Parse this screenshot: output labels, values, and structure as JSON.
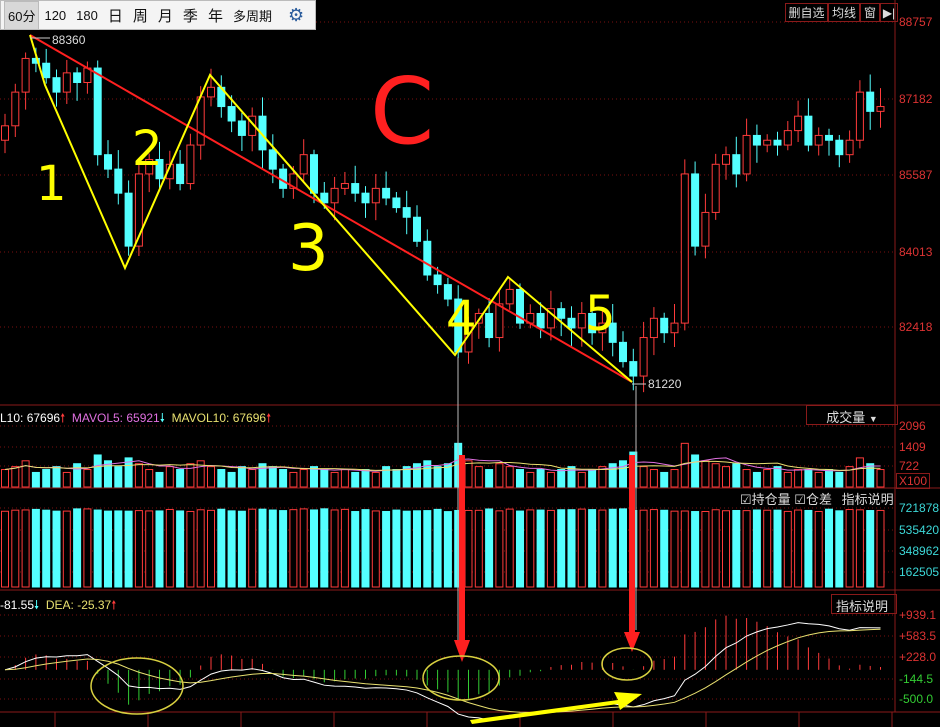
{
  "toolbar": {
    "periods": [
      "60分",
      "120",
      "180",
      "日",
      "周",
      "月",
      "季",
      "年",
      "多周期"
    ],
    "selected": "60分",
    "settings_icon": "gear-icon"
  },
  "top_right": {
    "delete_watch": "删自选",
    "ma": "均线",
    "window": "窗",
    "expand_icon": "arrow-right-bar-icon"
  },
  "price_panel": {
    "high_label": "88360",
    "low_label": "81220",
    "axis": [
      "88757",
      "87182",
      "85587",
      "84013",
      "82418"
    ]
  },
  "volume_panel": {
    "legend": [
      {
        "text": "L10: 67696",
        "arrow": "up",
        "color": "#ffffff"
      },
      {
        "text": "MAVOL5: 65921",
        "arrow": "down",
        "color": "#e070e0"
      },
      {
        "text": "MAVOL10: 67696",
        "arrow": "up",
        "color": "#e8e070"
      }
    ],
    "selector": "成交量",
    "axis": [
      "2096",
      "1409",
      "722",
      "X100"
    ]
  },
  "oi_panel": {
    "checkbox_oi": "持仓量",
    "checkbox_diff": "仓差",
    "explain": "指标说明",
    "axis": [
      "721878",
      "535420",
      "348962",
      "162505"
    ]
  },
  "macd_panel": {
    "dif": "-81.55",
    "dea": "DEA: -25.37",
    "explain": "指标说明",
    "axis": [
      "+939.1",
      "+583.5",
      "+228.0",
      "-144.5",
      "-500.0"
    ]
  },
  "annotations": {
    "wave_labels": [
      "1",
      "2",
      "3",
      "4",
      "5"
    ],
    "big_label": "C"
  },
  "colors": {
    "up": "#ff3b3b",
    "down": "#54ffff",
    "grid": "#7a1010",
    "annotation_yellow": "#ffff00",
    "annotation_red": "#ff2020"
  },
  "chart_data": {
    "type": "candlestick",
    "closes": [
      86600,
      87300,
      88000,
      87900,
      87600,
      87300,
      87700,
      87500,
      87800,
      86000,
      85700,
      85200,
      84100,
      85600,
      85900,
      85500,
      85800,
      85400,
      86200,
      87200,
      87400,
      87000,
      86700,
      86400,
      86800,
      86100,
      85700,
      85300,
      85600,
      86000,
      85200,
      85000,
      85300,
      85400,
      85200,
      85000,
      85300,
      85100,
      84900,
      84700,
      84200,
      83500,
      83300,
      83000,
      81900,
      82500,
      82700,
      82200,
      82900,
      83200,
      82500,
      82700,
      82400,
      82800,
      82600,
      82400,
      82700,
      82300,
      82500,
      82100,
      81700,
      81400,
      82200,
      82600,
      82300,
      82500,
      85600,
      84100,
      84800,
      85800,
      86000,
      85600,
      86400,
      86200,
      86300,
      86200,
      86500,
      86800,
      86200,
      86400,
      86300,
      86000,
      86300,
      87300,
      86900,
      87000
    ],
    "volume_x100": [
      600,
      700,
      900,
      500,
      600,
      700,
      500,
      800,
      600,
      1100,
      900,
      700,
      1000,
      800,
      600,
      500,
      700,
      600,
      800,
      900,
      700,
      600,
      500,
      700,
      600,
      800,
      700,
      600,
      500,
      600,
      700,
      600,
      500,
      600,
      500,
      600,
      500,
      700,
      600,
      700,
      800,
      900,
      700,
      800,
      1500,
      900,
      700,
      600,
      800,
      700,
      600,
      500,
      600,
      500,
      600,
      700,
      500,
      600,
      700,
      800,
      900,
      1200,
      700,
      600,
      500,
      600,
      1500,
      1100,
      900,
      800,
      700,
      800,
      600,
      500,
      600,
      700,
      500,
      600,
      600,
      500,
      600,
      500,
      700,
      1000,
      800,
      600
    ],
    "open_interest_range": [
      680000,
      715000
    ],
    "macd": {
      "dif": -81.55,
      "dea": -25.37
    },
    "ylim": [
      81000,
      88757
    ]
  }
}
